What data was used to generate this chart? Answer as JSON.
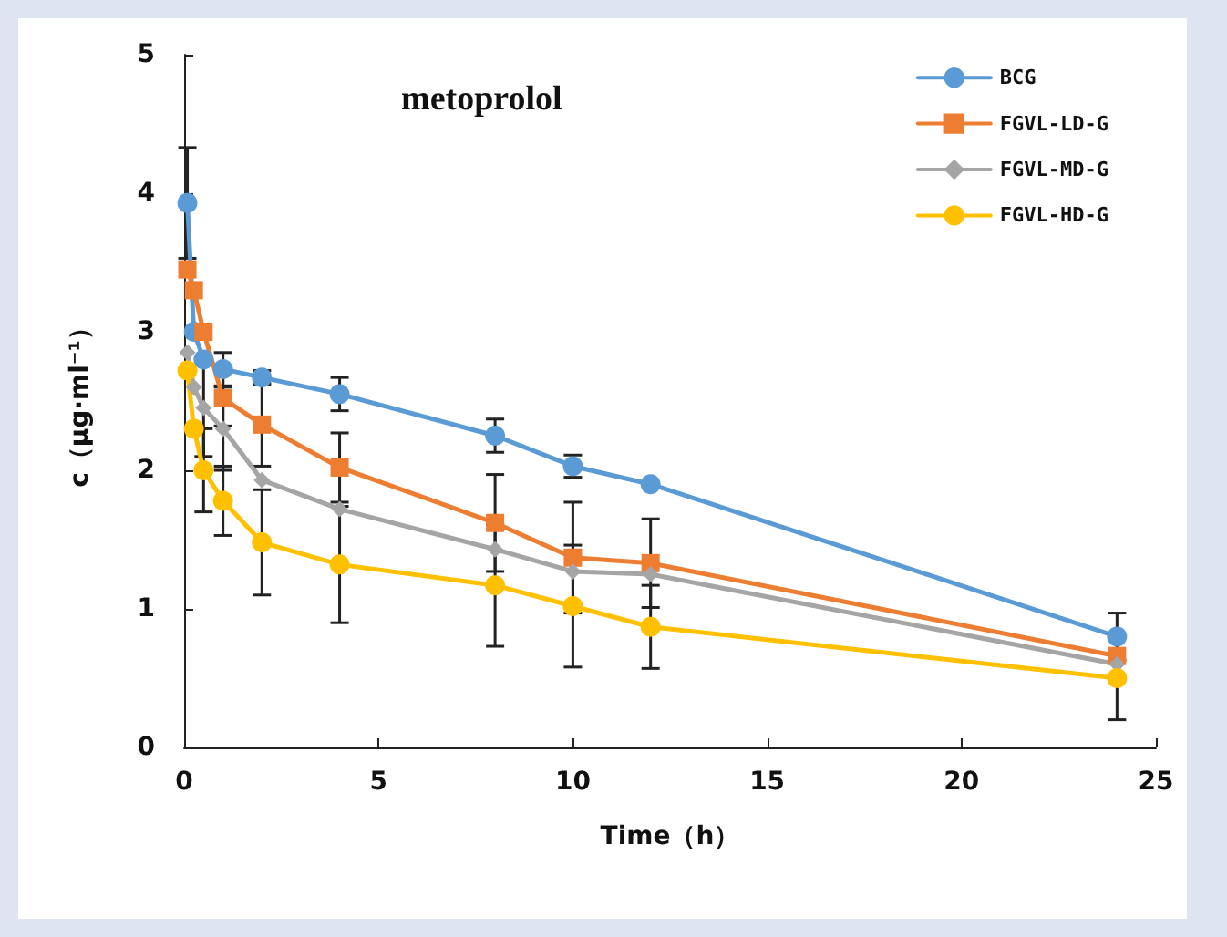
{
  "chart_data": {
    "type": "line",
    "title": "metoprolol",
    "xlabel": "Time（h）",
    "ylabel": "c（μg·ml⁻¹）",
    "x": [
      0.083,
      0.25,
      0.5,
      1,
      2,
      4,
      8,
      10,
      12,
      24
    ],
    "series": [
      {
        "name": "BCG",
        "color": "#5b9bd5",
        "marker": "circle",
        "values": [
          3.93,
          3.0,
          2.8,
          2.73,
          2.67,
          2.55,
          2.25,
          2.03,
          1.9,
          0.8
        ],
        "errors": [
          0.4,
          null,
          null,
          0.12,
          0.05,
          0.12,
          0.12,
          0.08,
          null,
          0.17
        ]
      },
      {
        "name": "FGVL-LD-G",
        "color": "#ed7d31",
        "marker": "square",
        "values": [
          3.45,
          3.3,
          3.0,
          2.52,
          2.33,
          2.02,
          1.62,
          1.37,
          1.33,
          0.66
        ],
        "errors": [
          null,
          null,
          null,
          0.2,
          0.3,
          0.25,
          0.35,
          0.4,
          0.32,
          null
        ]
      },
      {
        "name": "FGVL-MD-G",
        "color": "#a5a5a5",
        "marker": "diamond",
        "values": [
          2.85,
          2.6,
          2.45,
          2.3,
          1.93,
          1.72,
          1.43,
          1.27,
          1.25,
          0.6
        ],
        "errors": [
          null,
          null,
          0.35,
          0.3,
          null,
          null,
          null,
          null,
          null,
          null
        ]
      },
      {
        "name": "FGVL-HD-G",
        "color": "#ffc000",
        "marker": "circle",
        "values": [
          2.72,
          2.3,
          2.0,
          1.78,
          1.48,
          1.32,
          1.17,
          1.02,
          0.87,
          0.5
        ],
        "errors": [
          null,
          null,
          0.3,
          0.25,
          0.38,
          0.42,
          0.44,
          0.44,
          0.3,
          0.3
        ]
      }
    ],
    "xlim": [
      0,
      25
    ],
    "xticks": [
      0,
      5,
      10,
      15,
      20,
      25
    ],
    "ylim": [
      0,
      5
    ],
    "yticks": [
      0,
      1,
      2,
      3,
      4,
      5
    ],
    "grid": false,
    "legend": "top right"
  }
}
